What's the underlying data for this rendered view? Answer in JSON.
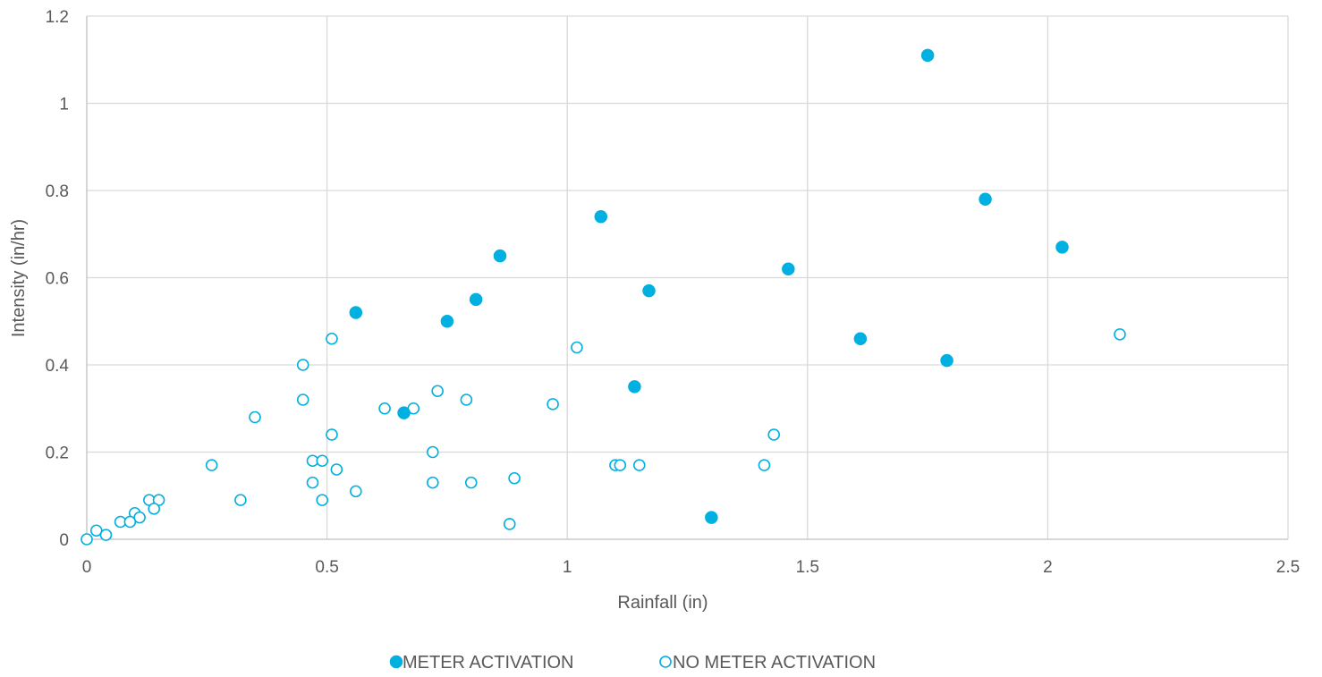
{
  "chart_data": {
    "type": "scatter",
    "xlabel": "Rainfall (in)",
    "ylabel": "Intensity (in/hr)",
    "xlim": [
      0,
      2.5
    ],
    "ylim": [
      0,
      1.2
    ],
    "x_ticks": [
      0,
      0.5,
      1,
      1.5,
      2,
      2.5
    ],
    "x_tick_labels": [
      "0",
      "0.5",
      "1",
      "1.5",
      "2",
      "2.5"
    ],
    "y_ticks": [
      0,
      0.2,
      0.4,
      0.6,
      0.8,
      1.0,
      1.2
    ],
    "y_tick_labels": [
      "0",
      "0.2",
      "0.4",
      "0.6",
      "0.8",
      "1",
      "1.2"
    ],
    "grid": true,
    "legend_position": "bottom",
    "series": [
      {
        "name": "METER ACTIVATION",
        "marker": "filled-circle",
        "color": "#00B0E0",
        "points": [
          [
            1.75,
            1.11
          ],
          [
            1.87,
            0.78
          ],
          [
            2.03,
            0.67
          ],
          [
            1.07,
            0.74
          ],
          [
            0.86,
            0.65
          ],
          [
            1.46,
            0.62
          ],
          [
            1.17,
            0.57
          ],
          [
            0.81,
            0.55
          ],
          [
            0.56,
            0.52
          ],
          [
            0.75,
            0.5
          ],
          [
            1.61,
            0.46
          ],
          [
            1.79,
            0.41
          ],
          [
            1.14,
            0.35
          ],
          [
            0.66,
            0.29
          ],
          [
            1.3,
            0.05
          ]
        ]
      },
      {
        "name": "NO METER ACTIVATION",
        "marker": "open-circle",
        "color": "#00B0E0",
        "points": [
          [
            2.15,
            0.47
          ],
          [
            1.02,
            0.44
          ],
          [
            0.51,
            0.46
          ],
          [
            0.45,
            0.4
          ],
          [
            0.45,
            0.32
          ],
          [
            0.35,
            0.28
          ],
          [
            0.73,
            0.34
          ],
          [
            0.79,
            0.32
          ],
          [
            0.97,
            0.31
          ],
          [
            0.62,
            0.3
          ],
          [
            0.68,
            0.3
          ],
          [
            0.51,
            0.24
          ],
          [
            1.43,
            0.24
          ],
          [
            0.72,
            0.2
          ],
          [
            0.47,
            0.18
          ],
          [
            0.49,
            0.18
          ],
          [
            0.26,
            0.17
          ],
          [
            1.1,
            0.17
          ],
          [
            1.11,
            0.17
          ],
          [
            1.15,
            0.17
          ],
          [
            1.41,
            0.17
          ],
          [
            0.52,
            0.16
          ],
          [
            0.89,
            0.14
          ],
          [
            0.47,
            0.13
          ],
          [
            0.72,
            0.13
          ],
          [
            0.8,
            0.13
          ],
          [
            0.56,
            0.11
          ],
          [
            0.32,
            0.09
          ],
          [
            0.49,
            0.09
          ],
          [
            0.13,
            0.09
          ],
          [
            0.15,
            0.09
          ],
          [
            0.14,
            0.07
          ],
          [
            0.1,
            0.06
          ],
          [
            0.11,
            0.05
          ],
          [
            0.07,
            0.04
          ],
          [
            0.09,
            0.04
          ],
          [
            0.88,
            0.035
          ],
          [
            0.02,
            0.02
          ],
          [
            0.04,
            0.01
          ],
          [
            0.0,
            0.0
          ]
        ]
      }
    ]
  }
}
